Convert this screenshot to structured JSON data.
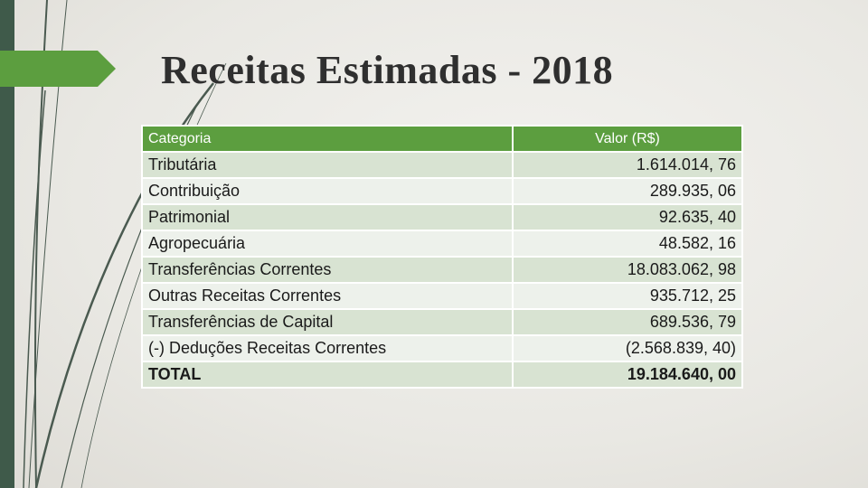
{
  "title": "Receitas Estimadas - 2018",
  "colors": {
    "accent_green": "#5c9e3f",
    "dark_bar": "#3f5a4a",
    "row_odd": "#d8e3d2",
    "row_even": "#edf1eb"
  },
  "table": {
    "headers": {
      "category": "Categoria",
      "value": "Valor (R$)"
    },
    "rows": [
      {
        "category": "Tributária",
        "value": "1.614.014, 76"
      },
      {
        "category": "Contribuição",
        "value": "289.935, 06"
      },
      {
        "category": "Patrimonial",
        "value": "92.635, 40"
      },
      {
        "category": "Agropecuária",
        "value": "48.582, 16"
      },
      {
        "category": "Transferências Correntes",
        "value": "18.083.062, 98"
      },
      {
        "category": "Outras Receitas Correntes",
        "value": "935.712, 25"
      },
      {
        "category": "Transferências de Capital",
        "value": "689.536, 79"
      },
      {
        "category": "(-) Deduções Receitas Correntes",
        "value": "(2.568.839, 40)"
      }
    ],
    "total": {
      "category": "TOTAL",
      "value": "19.184.640, 00"
    }
  }
}
